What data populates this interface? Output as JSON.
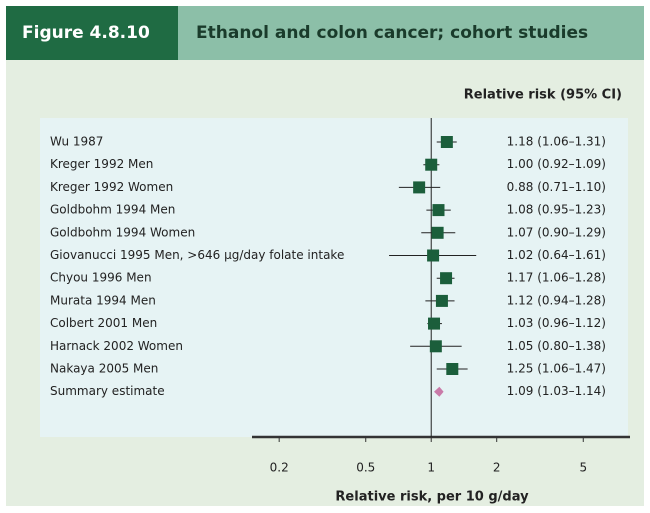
{
  "chart_data": {
    "type": "forest",
    "figure_label": "Figure 4.8.10",
    "title": "Ethanol and colon cancer; cohort studies",
    "column_header": "Relative risk (95% CI)",
    "xlabel": "Relative risk, per 10 g/day",
    "categories": [
      "Wu 1987",
      "Kreger 1992 Men",
      "Kreger 1992 Women",
      "Goldbohm 1994 Men",
      "Goldbohm 1994 Women",
      "Giovanucci 1995 Men, >646 µg/day folate intake",
      "Chyou 1996 Men",
      "Murata 1994 Men",
      "Colbert 2001 Men",
      "Harnack 2002 Women",
      "Nakaya 2005 Men"
    ],
    "values": [
      1.18,
      1.0,
      0.88,
      1.08,
      1.07,
      1.02,
      1.17,
      1.12,
      1.03,
      1.05,
      1.25
    ],
    "lower": [
      1.06,
      0.92,
      0.71,
      0.95,
      0.9,
      0.64,
      1.06,
      0.94,
      0.96,
      0.8,
      1.06
    ],
    "upper": [
      1.31,
      1.09,
      1.1,
      1.23,
      1.29,
      1.61,
      1.28,
      1.28,
      1.12,
      1.38,
      1.47
    ],
    "value_labels": [
      "1.18 (1.06–1.31)",
      "1.00 (0.92–1.09)",
      "0.88 (0.71–1.10)",
      "1.08 (0.95–1.23)",
      "1.07 (0.90–1.29)",
      "1.02 (0.64–1.61)",
      "1.17 (1.06–1.28)",
      "1.12 (0.94–1.28)",
      "1.03 (0.96–1.12)",
      "1.05 (0.80–1.38)",
      "1.25 (1.06–1.47)"
    ],
    "color": "#1b5e3b",
    "summary": {
      "name": "Summary estimate",
      "value": 1.09,
      "lower": 1.03,
      "upper": 1.14,
      "value_label": "1.09 (1.03–1.14)",
      "color": "#c97aa8"
    },
    "log_x": true,
    "xlim": [
      0.15,
      8.2
    ],
    "xticks": [
      0.2,
      0.5,
      1,
      2,
      5
    ]
  }
}
